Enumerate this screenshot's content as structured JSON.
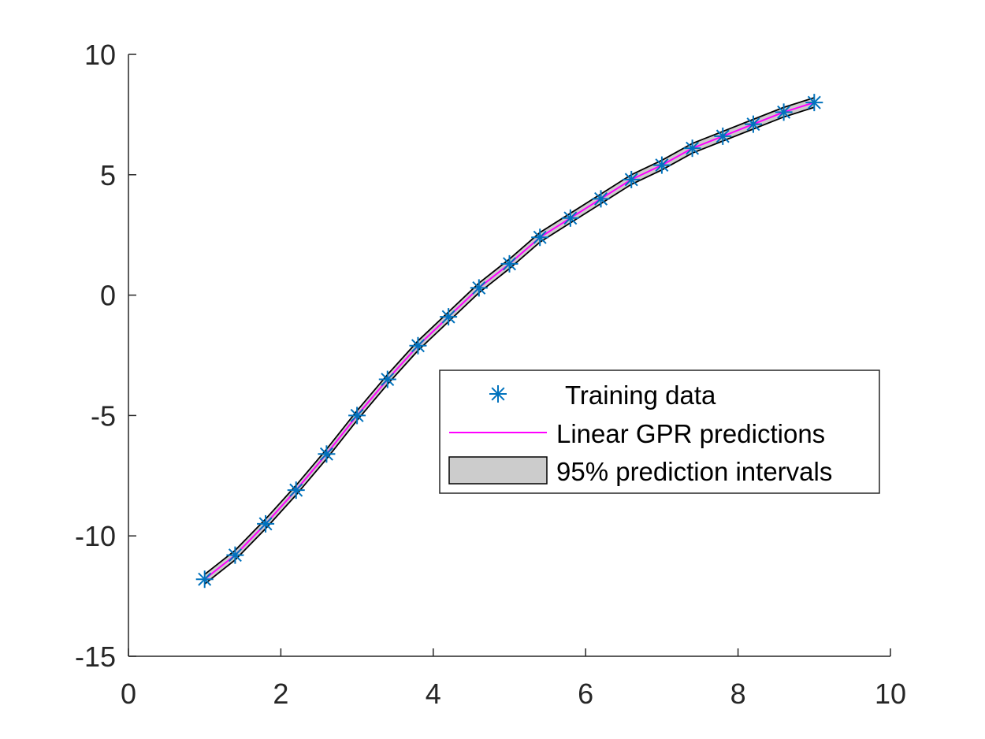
{
  "chart_data": {
    "type": "line",
    "title": "",
    "xlabel": "",
    "ylabel": "",
    "xlim": [
      0,
      10
    ],
    "ylim": [
      -15,
      10
    ],
    "xticks": [
      0,
      2,
      4,
      6,
      8,
      10
    ],
    "yticks": [
      -15,
      -10,
      -5,
      0,
      5,
      10
    ],
    "xtick_labels": [
      "0",
      "2",
      "4",
      "6",
      "8",
      "10"
    ],
    "ytick_labels": [
      "-15",
      "-10",
      "-5",
      "0",
      "5",
      "10"
    ],
    "grid": false,
    "legend_position": "lower-right (inside axes)",
    "series": [
      {
        "name": "Training data",
        "kind": "scatter",
        "marker": "asterisk",
        "color": "#0072BD",
        "x": [
          1.0,
          1.4,
          1.8,
          2.2,
          2.6,
          3.0,
          3.4,
          3.8,
          4.2,
          4.6,
          5.0,
          5.4,
          5.8,
          6.2,
          6.6,
          7.0,
          7.4,
          7.8,
          8.2,
          8.6,
          9.0
        ],
        "y": [
          -11.8,
          -10.8,
          -9.5,
          -8.1,
          -6.6,
          -5.0,
          -3.5,
          -2.1,
          -0.9,
          0.3,
          1.3,
          2.4,
          3.2,
          4.0,
          4.8,
          5.4,
          6.1,
          6.6,
          7.1,
          7.6,
          8.0
        ]
      },
      {
        "name": "Linear GPR predictions",
        "kind": "line",
        "color": "#FF00FF",
        "x": [
          1.0,
          1.4,
          1.8,
          2.2,
          2.6,
          3.0,
          3.4,
          3.8,
          4.2,
          4.6,
          5.0,
          5.4,
          5.8,
          6.2,
          6.6,
          7.0,
          7.4,
          7.8,
          8.2,
          8.6,
          9.0
        ],
        "y": [
          -11.8,
          -10.8,
          -9.5,
          -8.1,
          -6.6,
          -5.0,
          -3.5,
          -2.1,
          -0.9,
          0.3,
          1.3,
          2.4,
          3.2,
          4.0,
          4.8,
          5.4,
          6.1,
          6.6,
          7.1,
          7.6,
          8.0
        ]
      },
      {
        "name": "95% prediction intervals",
        "kind": "band",
        "fill": "#CCCCCC",
        "edge": "#000000",
        "x": [
          1.0,
          1.4,
          1.8,
          2.2,
          2.6,
          3.0,
          3.4,
          3.8,
          4.2,
          4.6,
          5.0,
          5.4,
          5.8,
          6.2,
          6.6,
          7.0,
          7.4,
          7.8,
          8.2,
          8.6,
          9.0
        ],
        "lower": [
          -12.0,
          -11.0,
          -9.7,
          -8.3,
          -6.8,
          -5.2,
          -3.7,
          -2.3,
          -1.1,
          0.1,
          1.1,
          2.2,
          3.0,
          3.8,
          4.6,
          5.2,
          5.9,
          6.4,
          6.9,
          7.4,
          7.8
        ],
        "upper": [
          -11.6,
          -10.6,
          -9.3,
          -7.9,
          -6.4,
          -4.8,
          -3.3,
          -1.9,
          -0.7,
          0.5,
          1.5,
          2.6,
          3.4,
          4.2,
          5.0,
          5.6,
          6.3,
          6.8,
          7.3,
          7.8,
          8.2
        ]
      }
    ]
  }
}
